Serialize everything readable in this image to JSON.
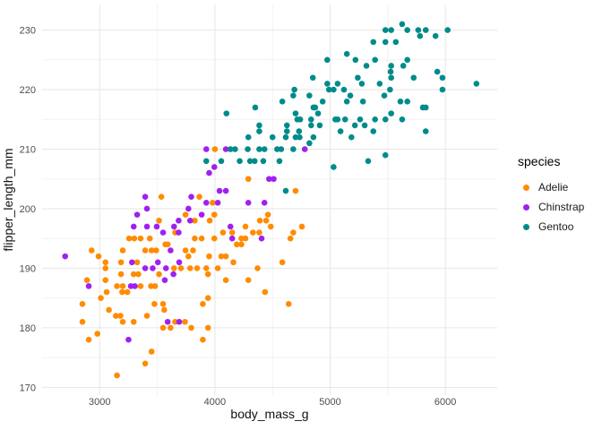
{
  "chart_data": {
    "type": "scatter",
    "title": "",
    "xlabel": "body_mass_g",
    "ylabel": "flipper_length_mm",
    "xlim": [
      2500,
      6450
    ],
    "ylim": [
      168.7,
      234.3
    ],
    "x_ticks": [
      3000,
      4000,
      5000,
      6000
    ],
    "x_minor_ticks": [
      3500,
      4500,
      5500
    ],
    "y_ticks": [
      170,
      180,
      190,
      200,
      210,
      220,
      230
    ],
    "y_minor_ticks": [
      175,
      185,
      195,
      205,
      215,
      225
    ],
    "grid": true,
    "legend_position": "right",
    "legend_title": "species",
    "style": {
      "background": "#FFFFFF",
      "grid_major_color": "#E6E6E6",
      "grid_minor_color": "#F2F2F2",
      "tick_label_color": "#4D4D4D",
      "point_radius": 3.3
    },
    "series": [
      {
        "name": "Adelie",
        "color": "#FF8C00",
        "points": [
          [
            2850,
            184
          ],
          [
            2850,
            181
          ],
          [
            2890,
            188
          ],
          [
            2905,
            178
          ],
          [
            2930,
            193
          ],
          [
            2980,
            179
          ],
          [
            2990,
            192
          ],
          [
            3010,
            185
          ],
          [
            3050,
            191
          ],
          [
            3050,
            190
          ],
          [
            3050,
            188
          ],
          [
            3060,
            186
          ],
          [
            3080,
            183
          ],
          [
            3140,
            182
          ],
          [
            3150,
            187
          ],
          [
            3150,
            172
          ],
          [
            3180,
            182
          ],
          [
            3185,
            189
          ],
          [
            3185,
            191
          ],
          [
            3195,
            186
          ],
          [
            3200,
            193
          ],
          [
            3200,
            187
          ],
          [
            3200,
            181
          ],
          [
            3240,
            186
          ],
          [
            3255,
            195
          ],
          [
            3295,
            189
          ],
          [
            3295,
            181
          ],
          [
            3300,
            195
          ],
          [
            3325,
            191
          ],
          [
            3335,
            189
          ],
          [
            3355,
            195
          ],
          [
            3355,
            187
          ],
          [
            3395,
            193
          ],
          [
            3395,
            174
          ],
          [
            3410,
            182
          ],
          [
            3435,
            195
          ],
          [
            3445,
            187
          ],
          [
            3450,
            193
          ],
          [
            3450,
            176
          ],
          [
            3475,
            184
          ],
          [
            3480,
            187
          ],
          [
            3490,
            193
          ],
          [
            3515,
            198
          ],
          [
            3515,
            189
          ],
          [
            3535,
            202
          ],
          [
            3550,
            184
          ],
          [
            3550,
            180
          ],
          [
            3560,
            183
          ],
          [
            3570,
            194
          ],
          [
            3590,
            194
          ],
          [
            3615,
            180
          ],
          [
            3645,
            190
          ],
          [
            3655,
            196
          ],
          [
            3655,
            181
          ],
          [
            3705,
            190
          ],
          [
            3740,
            181
          ],
          [
            3745,
            199
          ],
          [
            3745,
            193
          ],
          [
            3770,
            192
          ],
          [
            3785,
            190
          ],
          [
            3795,
            180
          ],
          [
            3810,
            193
          ],
          [
            3825,
            198
          ],
          [
            3825,
            195
          ],
          [
            3845,
            190
          ],
          [
            3865,
            202
          ],
          [
            3885,
            195
          ],
          [
            3895,
            184
          ],
          [
            3895,
            178
          ],
          [
            3925,
            190
          ],
          [
            3940,
            189
          ],
          [
            3940,
            185
          ],
          [
            3940,
            180
          ],
          [
            3950,
            192
          ],
          [
            3955,
            198
          ],
          [
            3980,
            201
          ],
          [
            3995,
            199
          ],
          [
            3995,
            195
          ],
          [
            4000,
            210
          ],
          [
            4025,
            190
          ],
          [
            4055,
            192
          ],
          [
            4070,
            196
          ],
          [
            4095,
            192
          ],
          [
            4095,
            188
          ],
          [
            4150,
            196
          ],
          [
            4160,
            191
          ],
          [
            4190,
            194
          ],
          [
            4230,
            195
          ],
          [
            4230,
            194
          ],
          [
            4265,
            197
          ],
          [
            4265,
            195
          ],
          [
            4290,
            205
          ],
          [
            4290,
            188
          ],
          [
            4330,
            196
          ],
          [
            4370,
            190
          ],
          [
            4385,
            196
          ],
          [
            4390,
            198
          ],
          [
            4435,
            186
          ],
          [
            4445,
            198
          ],
          [
            4460,
            199
          ],
          [
            4485,
            197
          ],
          [
            4585,
            191
          ],
          [
            4640,
            184
          ],
          [
            4655,
            195
          ],
          [
            4680,
            196
          ],
          [
            4700,
            203
          ],
          [
            4755,
            197
          ]
        ]
      },
      {
        "name": "Chinstrap",
        "color": "#A020F0",
        "points": [
          [
            2700,
            192
          ],
          [
            2905,
            187
          ],
          [
            3250,
            178
          ],
          [
            3270,
            187
          ],
          [
            3280,
            191
          ],
          [
            3295,
            197
          ],
          [
            3305,
            187
          ],
          [
            3325,
            199
          ],
          [
            3395,
            202
          ],
          [
            3395,
            190
          ],
          [
            3410,
            200
          ],
          [
            3410,
            197
          ],
          [
            3460,
            190
          ],
          [
            3495,
            197
          ],
          [
            3505,
            191
          ],
          [
            3550,
            196
          ],
          [
            3565,
            188
          ],
          [
            3575,
            190
          ],
          [
            3590,
            181
          ],
          [
            3615,
            193
          ],
          [
            3640,
            189
          ],
          [
            3645,
            197
          ],
          [
            3685,
            198
          ],
          [
            3685,
            196
          ],
          [
            3690,
            191
          ],
          [
            3690,
            181
          ],
          [
            3770,
            200
          ],
          [
            3785,
            198
          ],
          [
            3795,
            202
          ],
          [
            3885,
            199
          ],
          [
            3925,
            210
          ],
          [
            3925,
            201
          ],
          [
            3950,
            206
          ],
          [
            3995,
            207
          ],
          [
            4025,
            201
          ],
          [
            4040,
            203
          ],
          [
            4095,
            210
          ],
          [
            4095,
            203
          ],
          [
            4135,
            197
          ],
          [
            4150,
            195
          ],
          [
            4290,
            201
          ],
          [
            4405,
            195
          ],
          [
            4430,
            201
          ],
          [
            4470,
            205
          ],
          [
            4510,
            205
          ],
          [
            4780,
            210
          ]
        ]
      },
      {
        "name": "Gentoo",
        "color": "#008B8B",
        "points": [
          [
            3925,
            208
          ],
          [
            4055,
            208
          ],
          [
            4100,
            216
          ],
          [
            4135,
            210
          ],
          [
            4175,
            210
          ],
          [
            4215,
            208
          ],
          [
            4285,
            210
          ],
          [
            4290,
            212
          ],
          [
            4305,
            208
          ],
          [
            4345,
            208
          ],
          [
            4350,
            217
          ],
          [
            4385,
            214
          ],
          [
            4385,
            213
          ],
          [
            4385,
            210
          ],
          [
            4420,
            208
          ],
          [
            4430,
            210
          ],
          [
            4500,
            212
          ],
          [
            4540,
            210
          ],
          [
            4560,
            208
          ],
          [
            4575,
            210
          ],
          [
            4585,
            218
          ],
          [
            4615,
            212
          ],
          [
            4615,
            203
          ],
          [
            4625,
            214
          ],
          [
            4625,
            213
          ],
          [
            4680,
            219
          ],
          [
            4680,
            210
          ],
          [
            4690,
            220
          ],
          [
            4700,
            216
          ],
          [
            4700,
            212
          ],
          [
            4715,
            215
          ],
          [
            4730,
            213
          ],
          [
            4735,
            212
          ],
          [
            4740,
            215
          ],
          [
            4820,
            219
          ],
          [
            4820,
            211
          ],
          [
            4835,
            215
          ],
          [
            4835,
            214
          ],
          [
            4850,
            222
          ],
          [
            4855,
            217
          ],
          [
            4855,
            212
          ],
          [
            4870,
            217
          ],
          [
            4895,
            216
          ],
          [
            4910,
            214
          ],
          [
            4935,
            218
          ],
          [
            4975,
            225
          ],
          [
            4975,
            221
          ],
          [
            4990,
            220
          ],
          [
            5030,
            220
          ],
          [
            5030,
            207
          ],
          [
            5045,
            215
          ],
          [
            5065,
            221
          ],
          [
            5065,
            215
          ],
          [
            5090,
            213
          ],
          [
            5120,
            220
          ],
          [
            5130,
            215
          ],
          [
            5145,
            226
          ],
          [
            5145,
            218
          ],
          [
            5175,
            219
          ],
          [
            5185,
            212
          ],
          [
            5215,
            214
          ],
          [
            5220,
            225
          ],
          [
            5240,
            222
          ],
          [
            5260,
            215
          ],
          [
            5275,
            221
          ],
          [
            5285,
            218
          ],
          [
            5300,
            214
          ],
          [
            5315,
            224
          ],
          [
            5330,
            208
          ],
          [
            5375,
            228
          ],
          [
            5375,
            213
          ],
          [
            5390,
            225
          ],
          [
            5390,
            215
          ],
          [
            5430,
            221
          ],
          [
            5470,
            219
          ],
          [
            5480,
            230
          ],
          [
            5480,
            228
          ],
          [
            5480,
            215
          ],
          [
            5480,
            209
          ],
          [
            5520,
            220
          ],
          [
            5525,
            223
          ],
          [
            5530,
            230
          ],
          [
            5530,
            224
          ],
          [
            5530,
            222
          ],
          [
            5530,
            216
          ],
          [
            5570,
            228
          ],
          [
            5610,
            218
          ],
          [
            5625,
            231
          ],
          [
            5625,
            215
          ],
          [
            5635,
            224
          ],
          [
            5670,
            230
          ],
          [
            5670,
            225
          ],
          [
            5670,
            218
          ],
          [
            5725,
            222
          ],
          [
            5765,
            230
          ],
          [
            5780,
            229
          ],
          [
            5805,
            217
          ],
          [
            5830,
            230
          ],
          [
            5830,
            217
          ],
          [
            5830,
            213
          ],
          [
            5915,
            229
          ],
          [
            5930,
            223
          ],
          [
            5975,
            222
          ],
          [
            5975,
            220
          ],
          [
            6020,
            230
          ],
          [
            6270,
            221
          ]
        ]
      }
    ]
  }
}
